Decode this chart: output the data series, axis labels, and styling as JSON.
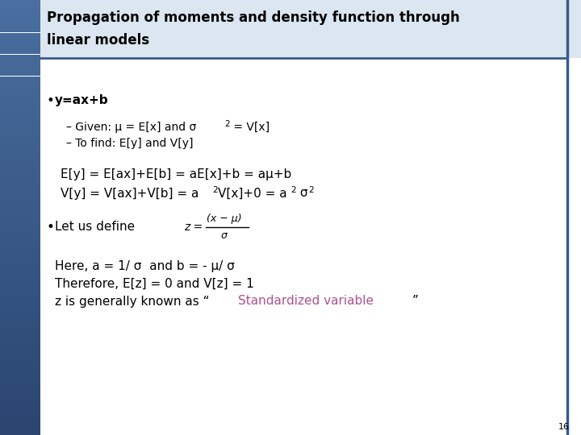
{
  "title_line1": "Propagation of moments and density function through",
  "title_line2": "linear models",
  "background_color": "#ffffff",
  "left_bar_top_color": "#4a6fa0",
  "left_bar_bottom_color": "#6e8fb8",
  "title_bg": "#dce6f1",
  "border_color": "#3a5a8c",
  "text_color": "#000000",
  "red_color": "#b05090",
  "slide_number": "16",
  "title_fontsize": 12,
  "body_fontsize": 11,
  "sub_fontsize": 10,
  "equation_fontsize": 11
}
